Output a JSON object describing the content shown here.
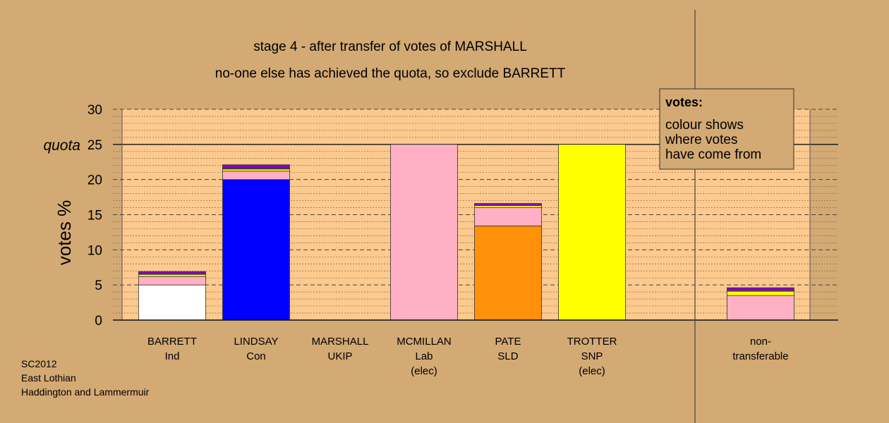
{
  "chart_data": {
    "type": "bar",
    "stacked": true,
    "title": "stage 4 - after transfer of votes of MARSHALL",
    "subtitle": "no-one else has achieved the quota, so exclude BARRETT",
    "ylabel": "votes %",
    "ylim": [
      0,
      30
    ],
    "yticks": [
      "0",
      "5",
      "10",
      "15",
      "20",
      "25",
      "30"
    ],
    "quota": {
      "label": "quota",
      "value": 25
    },
    "colors": {
      "background": "#d3a974",
      "plot": "#fcc98e",
      "Ind": "#ffffff",
      "Con": "#0000ff",
      "UKIP": "#8800cc",
      "Lab": "#ffb0c4",
      "SLD": "#ff9009",
      "SNP": "#ffff00"
    },
    "categories": [
      {
        "name": "BARRETT",
        "party": "Ind",
        "note": "",
        "segments": [
          {
            "from": "Ind",
            "value": 5.0
          },
          {
            "from": "Lab",
            "value": 1.2
          },
          {
            "from": "SNP",
            "value": 0.3
          },
          {
            "from": "SLD",
            "value": 0.1
          },
          {
            "from": "UKIP",
            "value": 0.3
          }
        ]
      },
      {
        "name": "LINDSAY",
        "party": "Con",
        "note": "",
        "segments": [
          {
            "from": "Con",
            "value": 20.0
          },
          {
            "from": "Lab",
            "value": 1.2
          },
          {
            "from": "SNP",
            "value": 0.3
          },
          {
            "from": "SLD",
            "value": 0.1
          },
          {
            "from": "UKIP",
            "value": 0.5
          }
        ]
      },
      {
        "name": "MARSHALL",
        "party": "UKIP",
        "note": "",
        "segments": []
      },
      {
        "name": "MCMILLAN",
        "party": "Lab",
        "note": "(elec)",
        "segments": [
          {
            "from": "Lab",
            "value": 25.0
          }
        ]
      },
      {
        "name": "PATE",
        "party": "SLD",
        "note": "",
        "segments": [
          {
            "from": "SLD",
            "value": 13.4
          },
          {
            "from": "Lab",
            "value": 2.6
          },
          {
            "from": "SNP",
            "value": 0.3
          },
          {
            "from": "UKIP",
            "value": 0.3
          }
        ]
      },
      {
        "name": "TROTTER",
        "party": "SNP",
        "note": "(elec)",
        "segments": [
          {
            "from": "SNP",
            "value": 25.0
          }
        ]
      }
    ],
    "nontransferable": {
      "label": [
        "non-",
        "transferable"
      ],
      "segments": [
        {
          "from": "Lab",
          "value": 3.5
        },
        {
          "from": "SNP",
          "value": 0.6
        },
        {
          "from": "SLD",
          "value": 0.1
        },
        {
          "from": "UKIP",
          "value": 0.4
        }
      ]
    },
    "legend": {
      "title": "votes:",
      "lines": [
        "colour shows",
        "where votes",
        "have come from"
      ]
    }
  },
  "footer": {
    "lines": [
      "SC2012",
      "East Lothian",
      "Haddington and Lammermuir"
    ]
  }
}
